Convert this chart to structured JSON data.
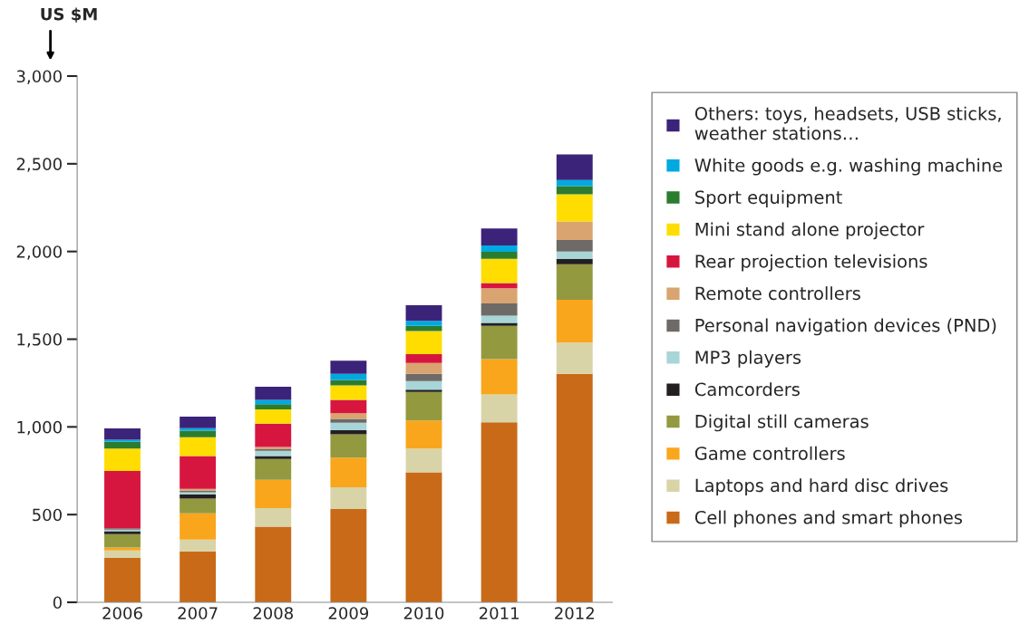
{
  "chart_data": {
    "type": "bar",
    "stacked": true,
    "ylabel": "US $M",
    "categories": [
      "2006",
      "2007",
      "2008",
      "2009",
      "2010",
      "2011",
      "2012"
    ],
    "ylim": [
      0,
      3000
    ],
    "yticks": [
      0,
      {
        "value": 500,
        "label": "500"
      },
      {
        "value": 1000,
        "label": "1,000"
      },
      {
        "value": 1500,
        "label": "1,500"
      },
      {
        "value": 2000,
        "label": "2,000"
      },
      {
        "value": 2500,
        "label": "2,500"
      },
      {
        "value": 3000,
        "label": "3,000"
      }
    ],
    "grid": false,
    "legend": "right",
    "series": [
      {
        "name": "Cell phones and smart phones",
        "color": "#c96a18",
        "values": [
          253,
          291,
          431,
          532,
          741,
          1026,
          1303
        ]
      },
      {
        "name": "Laptops and hard disc drives",
        "color": "#d8d4a8",
        "values": [
          42,
          66,
          106,
          124,
          135,
          159,
          177
        ]
      },
      {
        "name": "Game controllers",
        "color": "#f9a61c",
        "values": [
          17,
          150,
          161,
          169,
          161,
          202,
          244
        ]
      },
      {
        "name": "Digital still cameras",
        "color": "#93993f",
        "values": [
          76,
          84,
          119,
          133,
          162,
          189,
          203
        ]
      },
      {
        "name": "Camcorders",
        "color": "#231f20",
        "values": [
          17,
          23,
          17,
          23,
          13,
          17,
          31
        ]
      },
      {
        "name": "MP3 players",
        "color": "#a8d5d8",
        "values": [
          10,
          13,
          29,
          43,
          49,
          41,
          42
        ]
      },
      {
        "name": "Personal navigation devices (PND)",
        "color": "#6d6a67",
        "values": [
          7,
          9,
          10,
          22,
          42,
          70,
          65
        ]
      },
      {
        "name": "Remote controllers",
        "color": "#d9a46f",
        "values": [
          0,
          11,
          13,
          32,
          61,
          86,
          106
        ]
      },
      {
        "name": "Rear projection televisions",
        "color": "#d7163f",
        "values": [
          327,
          187,
          133,
          76,
          51,
          30,
          0
        ]
      },
      {
        "name": "Mini stand alone projector",
        "color": "#ffdd00",
        "values": [
          127,
          107,
          81,
          83,
          132,
          138,
          155
        ]
      },
      {
        "name": "Sport equipment",
        "color": "#2b7c2f",
        "values": [
          39,
          37,
          29,
          31,
          29,
          40,
          47
        ]
      },
      {
        "name": "White goods e.g. washing machine",
        "color": "#00a9e0",
        "values": [
          12,
          15,
          25,
          34,
          29,
          36,
          34
        ]
      },
      {
        "name": "Others: toys, headsets, USB sticks,\nweather stations…",
        "color": "#3c237a",
        "values": [
          65,
          66,
          75,
          75,
          88,
          97,
          146
        ]
      }
    ]
  }
}
